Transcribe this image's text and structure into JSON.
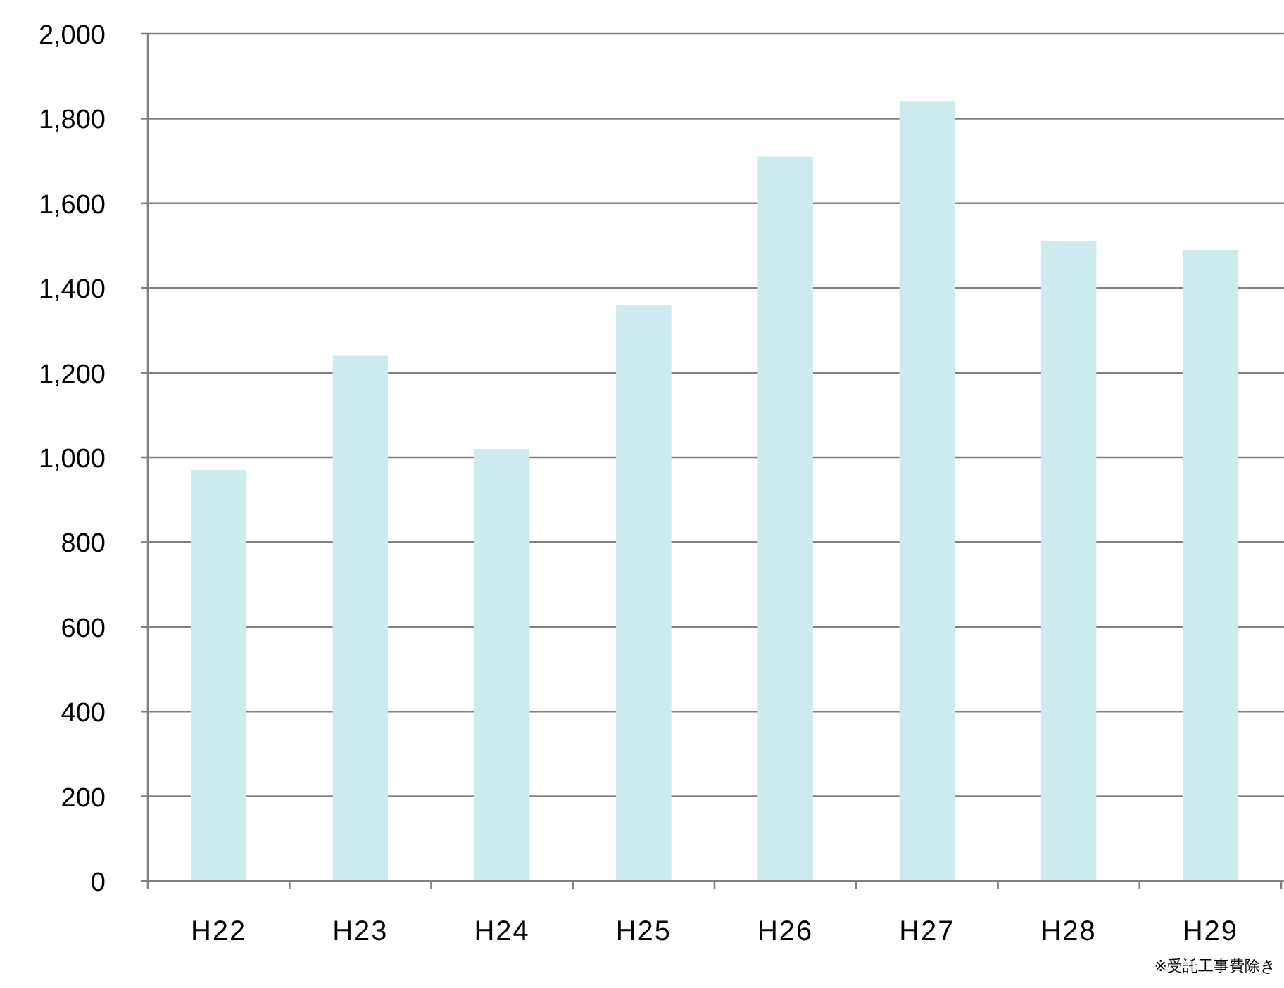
{
  "chart_data": {
    "type": "bar",
    "categories": [
      "H22",
      "H23",
      "H24",
      "H25",
      "H26",
      "H27",
      "H28",
      "H29"
    ],
    "values": [
      970,
      1240,
      1020,
      1360,
      1710,
      1840,
      1510,
      1490
    ],
    "color": "#cdeaee",
    "ylim": [
      0,
      2000
    ],
    "yticks": [
      {
        "value": 0,
        "label": "0"
      },
      {
        "value": 200,
        "label": "200"
      },
      {
        "value": 400,
        "label": "400"
      },
      {
        "value": 600,
        "label": "600"
      },
      {
        "value": 800,
        "label": "800"
      },
      {
        "value": 1000,
        "label": "1,000"
      },
      {
        "value": 1200,
        "label": "1,200"
      },
      {
        "value": 1400,
        "label": "1,400"
      },
      {
        "value": 1600,
        "label": "1,600"
      },
      {
        "value": 1800,
        "label": "1,800"
      },
      {
        "value": 2000,
        "label": "2,000"
      }
    ],
    "grid": "y",
    "annotations": [
      "※受託工事費除き"
    ]
  }
}
